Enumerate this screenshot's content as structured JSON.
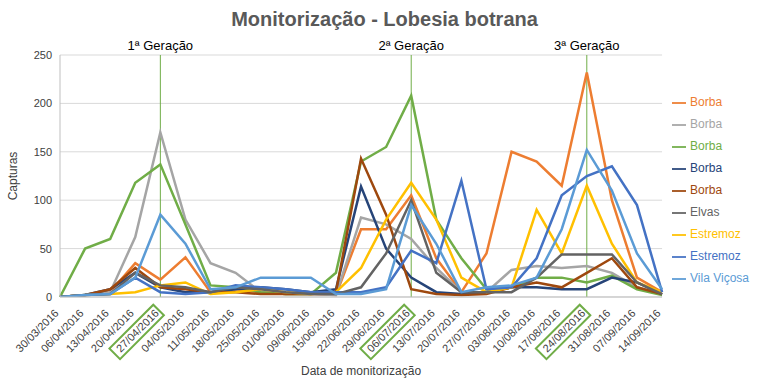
{
  "chart_data": {
    "type": "line",
    "title": "Monitorização - Lobesia botrana",
    "x_label": "Data de monitorização",
    "y_label": "Capturas",
    "categories": [
      "30/03/2016",
      "06/04/2016",
      "13/04/2016",
      "20/04/2016",
      "27/04/2016",
      "04/05/2016",
      "11/05/2016",
      "18/05/2016",
      "25/05/2016",
      "01/06/2016",
      "09/06/2016",
      "15/06/2016",
      "22/06/2016",
      "29/06/2016",
      "06/07/2016",
      "13/07/2016",
      "20/07/2016",
      "27/07/2016",
      "03/08/2016",
      "10/08/2016",
      "17/08/2016",
      "24/08/2016",
      "31/08/2016",
      "07/09/2016",
      "14/09/2016"
    ],
    "series": [
      {
        "name": "Borba",
        "color": "#ED7D31",
        "values": [
          0,
          2,
          5,
          35,
          18,
          41,
          5,
          8,
          5,
          3,
          3,
          2,
          70,
          70,
          105,
          40,
          5,
          45,
          150,
          140,
          115,
          232,
          100,
          20,
          5
        ]
      },
      {
        "name": "Borba",
        "color": "#A5A5A5",
        "values": [
          0,
          2,
          5,
          62,
          170,
          80,
          35,
          25,
          5,
          3,
          3,
          2,
          82,
          75,
          60,
          30,
          5,
          5,
          28,
          32,
          30,
          32,
          25,
          10,
          3
        ]
      },
      {
        "name": "Borba",
        "color": "#70AD47",
        "values": [
          0,
          50,
          60,
          118,
          137,
          75,
          12,
          10,
          5,
          3,
          3,
          25,
          140,
          155,
          208,
          80,
          40,
          8,
          10,
          20,
          20,
          15,
          22,
          8,
          2
        ]
      },
      {
        "name": "Borba",
        "color": "#264478",
        "values": [
          0,
          2,
          8,
          25,
          10,
          5,
          5,
          8,
          10,
          8,
          5,
          8,
          114,
          50,
          20,
          5,
          3,
          5,
          10,
          10,
          8,
          8,
          20,
          15,
          3
        ]
      },
      {
        "name": "Borba",
        "color": "#9E480E",
        "values": [
          0,
          2,
          8,
          30,
          10,
          8,
          5,
          5,
          3,
          3,
          3,
          5,
          143,
          85,
          8,
          3,
          2,
          3,
          10,
          15,
          10,
          25,
          40,
          10,
          3
        ]
      },
      {
        "name": "Estremoz",
        "color": "#FFC000",
        "values": [
          0,
          2,
          3,
          5,
          12,
          15,
          3,
          5,
          8,
          5,
          3,
          5,
          30,
          80,
          118,
          80,
          20,
          5,
          10,
          90,
          45,
          115,
          55,
          15,
          5
        ]
      },
      {
        "name": "Estremoz",
        "color": "#4472C4",
        "values": [
          0,
          2,
          3,
          20,
          5,
          3,
          5,
          12,
          10,
          8,
          5,
          5,
          5,
          10,
          48,
          35,
          120,
          8,
          10,
          40,
          105,
          125,
          135,
          95,
          5
        ]
      },
      {
        "name": "Elvas",
        "color": "#636363",
        "values": [
          0,
          2,
          3,
          25,
          12,
          10,
          5,
          10,
          8,
          5,
          3,
          3,
          10,
          45,
          100,
          25,
          5,
          5,
          5,
          20,
          44,
          44,
          44,
          15,
          3
        ]
      },
      {
        "name": "Vila Viçosa",
        "color": "#5B9BD5",
        "values": [
          0,
          2,
          3,
          20,
          85,
          55,
          8,
          10,
          20,
          20,
          20,
          3,
          3,
          8,
          95,
          55,
          5,
          10,
          12,
          20,
          70,
          152,
          110,
          45,
          8
        ]
      }
    ],
    "ylim": [
      0,
      250
    ],
    "yticks": [
      0,
      50,
      100,
      150,
      200,
      250
    ],
    "grid": true,
    "legend": "right",
    "annotations": [
      {
        "x": "27/04/2016",
        "label": "1ª Geração"
      },
      {
        "x": "06/07/2016",
        "label": "2ª Geração"
      },
      {
        "x": "24/08/2016",
        "label": "3ª Geração"
      }
    ]
  }
}
